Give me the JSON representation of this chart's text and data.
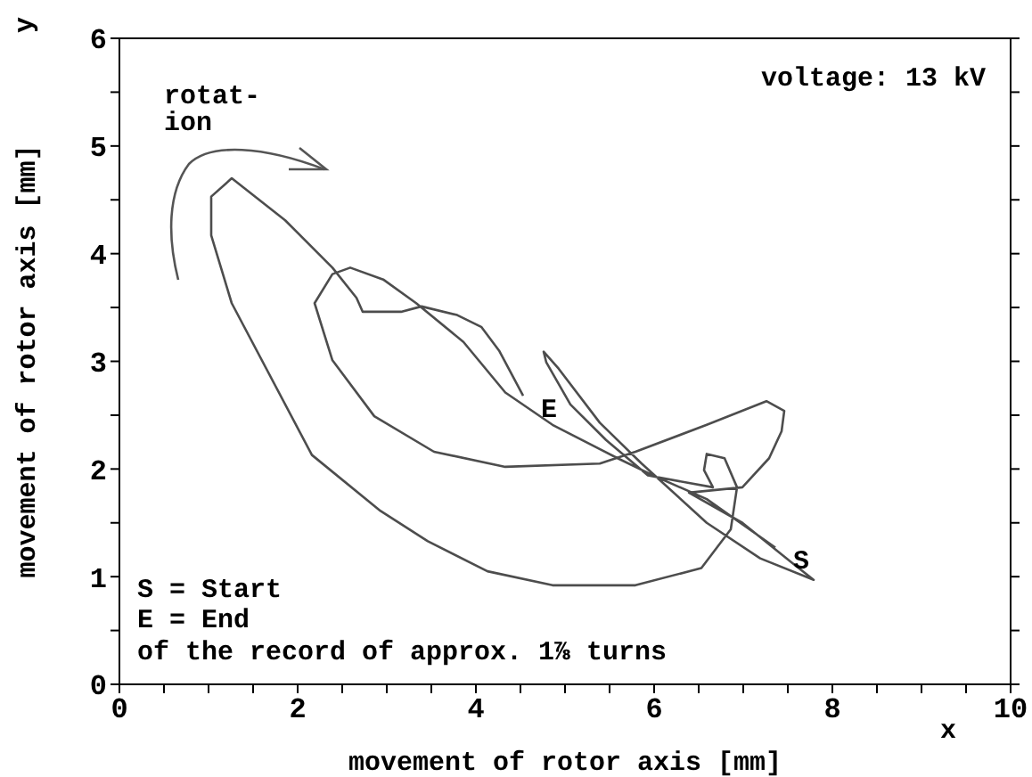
{
  "chart_data": {
    "type": "line",
    "xlabel": "movement of rotor axis [mm]",
    "ylabel": "movement of rotor axis [mm]",
    "marker": "none",
    "line_style": "solid",
    "annotations": [
      "rotat-\nion",
      "voltage: 13 kV",
      "S = Start",
      "E = End",
      "of the record of approx. 1⅞ turns",
      "x",
      "y",
      {
        "text": "S",
        "x": 7.36,
        "y": 1.27
      },
      {
        "text": "E",
        "x": 4.53,
        "y": 2.68
      }
    ],
    "xlim": [
      0,
      10
    ],
    "ylim": [
      0,
      6
    ],
    "xticks": [
      0,
      {
        "value": 0.5,
        "label": null
      },
      2,
      {
        "value": 1,
        "label": null
      },
      {
        "value": 1.5,
        "label": null
      },
      {
        "value": 2.5,
        "label": null
      },
      {
        "value": 3,
        "label": null
      },
      {
        "value": 3.5,
        "label": null
      },
      4,
      {
        "value": 4.5,
        "label": null
      },
      {
        "value": 5,
        "label": null
      },
      {
        "value": 5.5,
        "label": null
      },
      6,
      {
        "value": 6.5,
        "label": null
      },
      {
        "value": 7,
        "label": null
      },
      {
        "value": 7.5,
        "label": null
      },
      8,
      {
        "value": 8.5,
        "label": null
      },
      {
        "value": 9,
        "label": null
      },
      {
        "value": 9.5,
        "label": null
      },
      10
    ],
    "yticks": [
      0,
      {
        "value": 0.5,
        "label": null
      },
      1,
      {
        "value": 1.5,
        "label": null
      },
      2,
      {
        "value": 2.5,
        "label": null
      },
      3,
      {
        "value": 3.5,
        "label": null
      },
      4,
      {
        "value": 4.5,
        "label": null
      },
      5,
      {
        "value": 5.5,
        "label": null
      },
      6
    ],
    "series": [
      {
        "color": "#4d4d4d",
        "x": [
          7.36,
          6.59,
          5.99,
          5.59,
          4.86,
          4.33,
          3.86,
          3.33,
          2.96,
          2.59,
          2.39,
          2.19,
          2.39,
          2.86,
          3.53,
          4.33,
          5.39,
          5.79,
          6.59,
          7.26,
          7.46,
          7.43,
          7.29,
          6.99,
          6.39,
          6.99,
          7.53,
          7.79,
          7.19,
          6.59,
          5.86,
          5.39,
          4.93,
          4.76,
          4.79,
          5.06,
          5.46,
          5.93,
          6.66,
          6.56,
          6.59,
          6.79,
          6.93,
          6.86,
          6.53,
          5.79,
          4.86,
          4.13,
          3.46,
          2.93,
          2.16,
          1.26,
          1.03,
          1.03,
          1.26,
          1.86,
          2.39,
          2.66,
          2.73,
          3.16,
          3.39,
          3.79,
          4.06,
          4.26,
          4.53
        ],
        "values": [
          1.27,
          1.72,
          1.94,
          2.1,
          2.41,
          2.71,
          3.18,
          3.54,
          3.76,
          3.87,
          3.81,
          3.54,
          3.01,
          2.49,
          2.16,
          2.02,
          2.05,
          2.16,
          2.41,
          2.63,
          2.54,
          2.35,
          2.1,
          1.83,
          1.78,
          1.5,
          1.14,
          0.97,
          1.17,
          1.5,
          2.05,
          2.43,
          2.93,
          3.09,
          2.99,
          2.6,
          2.27,
          1.94,
          1.83,
          1.99,
          2.14,
          2.1,
          1.83,
          1.44,
          1.08,
          0.92,
          0.92,
          1.05,
          1.33,
          1.61,
          2.13,
          3.54,
          4.17,
          4.53,
          4.7,
          4.31,
          3.87,
          3.59,
          3.46,
          3.46,
          3.51,
          3.43,
          3.32,
          3.1,
          2.68
        ]
      }
    ]
  }
}
